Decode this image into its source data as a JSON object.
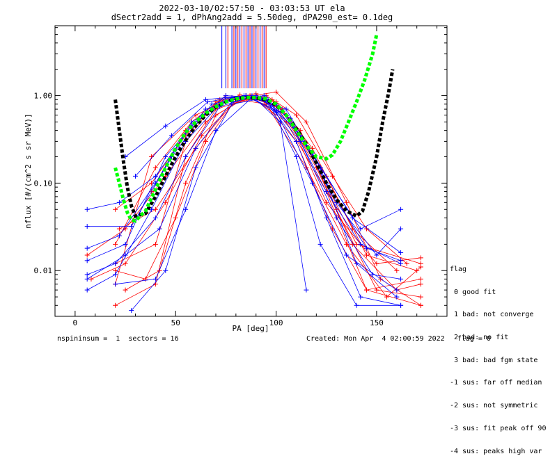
{
  "chart_data": {
    "type": "line",
    "title": "2022-03-10/02:57:50 - 03:03:53 UT ela",
    "subtitle": "dSectr2add = 1, dPhAng2add = 5.50deg, dPA290_est=   0.1deg",
    "xlabel": "PA [deg]",
    "ylabel": "nflux [#/(cm^2 s sr MeV)]",
    "xlim": [
      -10,
      185
    ],
    "ylim": [
      0.003,
      6.3
    ],
    "yscale": "log",
    "xticks": [
      0,
      50,
      100,
      150
    ],
    "xtick_labels": [
      "0",
      "50",
      "100",
      "150"
    ],
    "yticks": [
      0.01,
      0.1,
      1.0
    ],
    "ytick_labels": [
      "0.01",
      "0.10",
      "1.00"
    ],
    "colors": {
      "red": "#ff0000",
      "blue": "#0000ff",
      "green": "#00ff00",
      "black": "#000000"
    },
    "series": [
      {
        "color": "red",
        "values": [
          [
            20,
            0.004
          ],
          [
            40,
            0.007
          ],
          [
            55,
            0.2
          ],
          [
            70,
            0.7
          ],
          [
            88,
            0.95
          ],
          [
            105,
            0.5
          ],
          [
            125,
            0.08
          ],
          [
            145,
            0.006
          ],
          [
            172,
            0.004
          ]
        ]
      },
      {
        "color": "red",
        "values": [
          [
            20,
            0.012
          ],
          [
            40,
            0.02
          ],
          [
            55,
            0.3
          ],
          [
            70,
            0.85
          ],
          [
            85,
            1.0
          ],
          [
            100,
            0.75
          ],
          [
            118,
            0.2
          ],
          [
            140,
            0.02
          ],
          [
            172,
            0.012
          ]
        ]
      },
      {
        "color": "red",
        "values": [
          [
            6,
            0.015
          ],
          [
            25,
            0.03
          ],
          [
            45,
            0.12
          ],
          [
            65,
            0.5
          ],
          [
            85,
            0.98
          ],
          [
            105,
            0.6
          ],
          [
            125,
            0.12
          ],
          [
            145,
            0.015
          ],
          [
            170,
            0.01
          ]
        ]
      },
      {
        "color": "red",
        "values": [
          [
            20,
            0.05
          ],
          [
            38,
            0.1
          ],
          [
            55,
            0.35
          ],
          [
            72,
            0.9
          ],
          [
            90,
            1.05
          ],
          [
            108,
            0.45
          ],
          [
            125,
            0.06
          ],
          [
            150,
            0.012
          ],
          [
            172,
            0.014
          ]
        ]
      },
      {
        "color": "red",
        "values": [
          [
            20,
            0.01
          ],
          [
            35,
            0.008
          ],
          [
            50,
            0.04
          ],
          [
            65,
            0.3
          ],
          [
            80,
            0.9
          ],
          [
            98,
            0.9
          ],
          [
            112,
            0.4
          ],
          [
            130,
            0.05
          ],
          [
            150,
            0.006
          ],
          [
            172,
            0.005
          ]
        ]
      },
      {
        "color": "red",
        "values": [
          [
            20,
            0.02
          ],
          [
            40,
            0.15
          ],
          [
            58,
            0.5
          ],
          [
            75,
            1.0
          ],
          [
            92,
            0.95
          ],
          [
            110,
            0.3
          ],
          [
            128,
            0.03
          ],
          [
            145,
            0.006
          ],
          [
            172,
            0.008
          ]
        ]
      },
      {
        "color": "red",
        "values": [
          [
            25,
            0.006
          ],
          [
            42,
            0.01
          ],
          [
            55,
            0.1
          ],
          [
            70,
            0.6
          ],
          [
            87,
            1.0
          ],
          [
            103,
            0.7
          ],
          [
            120,
            0.15
          ],
          [
            138,
            0.02
          ],
          [
            160,
            0.006
          ],
          [
            172,
            0.007
          ]
        ]
      },
      {
        "color": "red",
        "values": [
          [
            38,
            0.08
          ],
          [
            55,
            0.4
          ],
          [
            75,
            0.95
          ],
          [
            95,
            0.8
          ],
          [
            115,
            0.15
          ],
          [
            135,
            0.02
          ],
          [
            155,
            0.005
          ],
          [
            172,
            0.011
          ]
        ]
      },
      {
        "color": "red",
        "values": [
          [
            20,
            0.007
          ],
          [
            38,
            0.2
          ],
          [
            60,
            0.6
          ],
          [
            82,
            1.02
          ],
          [
            100,
            0.85
          ],
          [
            118,
            0.25
          ],
          [
            138,
            0.03
          ],
          [
            160,
            0.01
          ]
        ]
      },
      {
        "color": "red",
        "values": [
          [
            22,
            0.03
          ],
          [
            40,
            0.05
          ],
          [
            60,
            0.25
          ],
          [
            78,
            0.8
          ],
          [
            95,
            1.0
          ],
          [
            110,
            0.6
          ],
          [
            128,
            0.12
          ],
          [
            145,
            0.03
          ],
          [
            165,
            0.012
          ]
        ]
      },
      {
        "color": "red",
        "values": [
          [
            8,
            0.008
          ],
          [
            25,
            0.012
          ],
          [
            45,
            0.06
          ],
          [
            63,
            0.35
          ],
          [
            82,
            0.95
          ],
          [
            100,
            1.1
          ],
          [
            115,
            0.5
          ],
          [
            135,
            0.06
          ],
          [
            152,
            0.008
          ],
          [
            172,
            0.004
          ]
        ]
      },
      {
        "color": "blue",
        "values": [
          [
            6,
            0.006
          ],
          [
            20,
            0.009
          ],
          [
            38,
            0.05
          ],
          [
            55,
            0.3
          ],
          [
            75,
            0.95
          ],
          [
            95,
            0.9
          ],
          [
            110,
            0.3
          ],
          [
            125,
            0.04
          ],
          [
            142,
            0.005
          ],
          [
            162,
            0.004
          ]
        ]
      },
      {
        "color": "blue",
        "values": [
          [
            6,
            0.05
          ],
          [
            22,
            0.06
          ],
          [
            40,
            0.12
          ],
          [
            58,
            0.45
          ],
          [
            75,
            1.0
          ],
          [
            92,
            0.95
          ],
          [
            108,
            0.45
          ],
          [
            125,
            0.08
          ],
          [
            142,
            0.02
          ],
          [
            162,
            0.012
          ]
        ]
      },
      {
        "color": "blue",
        "values": [
          [
            6,
            0.013
          ],
          [
            25,
            0.02
          ],
          [
            45,
            0.2
          ],
          [
            65,
            0.7
          ],
          [
            85,
            1.0
          ],
          [
            100,
            0.65
          ],
          [
            118,
            0.1
          ],
          [
            135,
            0.015
          ],
          [
            160,
            0.006
          ]
        ]
      },
      {
        "color": "blue",
        "values": [
          [
            28,
            0.0035
          ],
          [
            45,
            0.01
          ],
          [
            60,
            0.15
          ],
          [
            78,
            0.8
          ],
          [
            95,
            0.95
          ],
          [
            110,
            0.2
          ],
          [
            122,
            0.02
          ],
          [
            140,
            0.004
          ],
          [
            162,
            0.004
          ]
        ]
      },
      {
        "color": "blue",
        "values": [
          [
            6,
            0.032
          ],
          [
            28,
            0.032
          ],
          [
            48,
            0.2
          ],
          [
            68,
            0.8
          ],
          [
            88,
            1.0
          ],
          [
            102,
            0.5
          ],
          [
            115,
            0.006
          ]
        ]
      },
      {
        "color": "blue",
        "values": [
          [
            6,
            0.009
          ],
          [
            20,
            0.012
          ],
          [
            40,
            0.04
          ],
          [
            55,
            0.2
          ],
          [
            72,
            0.75
          ],
          [
            90,
            1.0
          ],
          [
            107,
            0.55
          ],
          [
            125,
            0.1
          ],
          [
            145,
            0.018
          ],
          [
            162,
            0.013
          ]
        ]
      },
      {
        "color": "blue",
        "values": [
          [
            30,
            0.12
          ],
          [
            48,
            0.35
          ],
          [
            66,
            0.85
          ],
          [
            84,
            1.0
          ],
          [
            100,
            0.8
          ],
          [
            118,
            0.22
          ],
          [
            138,
            0.04
          ],
          [
            162,
            0.016
          ]
        ]
      },
      {
        "color": "blue",
        "values": [
          [
            20,
            0.007
          ],
          [
            40,
            0.008
          ],
          [
            55,
            0.05
          ],
          [
            70,
            0.4
          ],
          [
            88,
            0.95
          ],
          [
            105,
            0.7
          ],
          [
            122,
            0.15
          ],
          [
            140,
            0.012
          ],
          [
            160,
            0.005
          ]
        ]
      },
      {
        "color": "blue",
        "values": [
          [
            6,
            0.018
          ],
          [
            22,
            0.025
          ],
          [
            40,
            0.1
          ],
          [
            58,
            0.5
          ],
          [
            78,
            0.95
          ],
          [
            96,
            0.88
          ],
          [
            112,
            0.35
          ],
          [
            130,
            0.06
          ],
          [
            150,
            0.015
          ],
          [
            162,
            0.03
          ]
        ]
      },
      {
        "color": "blue",
        "values": [
          [
            25,
            0.2
          ],
          [
            45,
            0.45
          ],
          [
            65,
            0.9
          ],
          [
            85,
            1.0
          ],
          [
            105,
            0.6
          ],
          [
            122,
            0.15
          ],
          [
            142,
            0.03
          ],
          [
            162,
            0.05
          ]
        ]
      },
      {
        "color": "blue",
        "values": [
          [
            6,
            0.008
          ],
          [
            25,
            0.015
          ],
          [
            42,
            0.03
          ],
          [
            60,
            0.25
          ],
          [
            78,
            0.85
          ],
          [
            94,
            1.0
          ],
          [
            112,
            0.3
          ],
          [
            130,
            0.04
          ],
          [
            148,
            0.009
          ],
          [
            162,
            0.008
          ]
        ]
      }
    ],
    "fits": [
      {
        "color": "black",
        "values": [
          [
            20,
            0.9
          ],
          [
            22,
            0.4
          ],
          [
            24,
            0.18
          ],
          [
            26,
            0.09
          ],
          [
            28,
            0.055
          ],
          [
            30,
            0.042
          ],
          [
            35,
            0.045
          ],
          [
            40,
            0.07
          ],
          [
            45,
            0.12
          ],
          [
            50,
            0.2
          ],
          [
            55,
            0.31
          ],
          [
            60,
            0.45
          ],
          [
            65,
            0.6
          ],
          [
            70,
            0.74
          ],
          [
            75,
            0.85
          ],
          [
            80,
            0.92
          ],
          [
            85,
            0.95
          ],
          [
            90,
            0.94
          ],
          [
            95,
            0.9
          ],
          [
            100,
            0.78
          ],
          [
            105,
            0.6
          ],
          [
            110,
            0.42
          ],
          [
            115,
            0.28
          ],
          [
            120,
            0.17
          ],
          [
            125,
            0.1
          ],
          [
            130,
            0.065
          ],
          [
            135,
            0.048
          ],
          [
            140,
            0.042
          ],
          [
            143,
            0.048
          ],
          [
            146,
            0.08
          ],
          [
            150,
            0.2
          ],
          [
            153,
            0.5
          ],
          [
            156,
            1.1
          ],
          [
            158,
            2.0
          ]
        ]
      },
      {
        "color": "green",
        "values": [
          [
            20,
            0.15
          ],
          [
            22,
            0.1
          ],
          [
            24,
            0.065
          ],
          [
            26,
            0.046
          ],
          [
            28,
            0.038
          ],
          [
            30,
            0.037
          ],
          [
            35,
            0.048
          ],
          [
            40,
            0.085
          ],
          [
            45,
            0.15
          ],
          [
            50,
            0.25
          ],
          [
            55,
            0.38
          ],
          [
            60,
            0.5
          ],
          [
            65,
            0.63
          ],
          [
            70,
            0.75
          ],
          [
            75,
            0.85
          ],
          [
            80,
            0.92
          ],
          [
            85,
            0.95
          ],
          [
            90,
            0.95
          ],
          [
            95,
            0.92
          ],
          [
            100,
            0.8
          ],
          [
            105,
            0.6
          ],
          [
            110,
            0.4
          ],
          [
            115,
            0.27
          ],
          [
            120,
            0.2
          ],
          [
            125,
            0.19
          ],
          [
            128,
            0.21
          ],
          [
            132,
            0.3
          ],
          [
            136,
            0.5
          ],
          [
            140,
            0.85
          ],
          [
            144,
            1.5
          ],
          [
            148,
            3.0
          ],
          [
            150,
            5.0
          ]
        ]
      }
    ],
    "vlines": {
      "red": [
        76,
        79,
        81,
        83,
        85,
        87,
        89,
        91,
        93,
        95
      ],
      "blue": [
        73,
        75,
        78,
        80,
        82,
        84,
        86,
        88,
        90,
        92,
        94
      ]
    },
    "legend_location": "bottom-right",
    "legend": [
      "flag",
      " 0 good fit",
      " 1 bad: not converge",
      " 2 bad: no fit",
      " 3 bad: bad fgm state",
      "-1 sus: far off median",
      "-2 sus: not symmetric",
      "-3 sus: fit peak off 90",
      "-4 sus: peaks high var"
    ]
  },
  "footer": {
    "left": "nspininsum =  1  sectors = 16",
    "right": "Created: Mon Apr  4 02:00:59 2022   flag = 0"
  }
}
